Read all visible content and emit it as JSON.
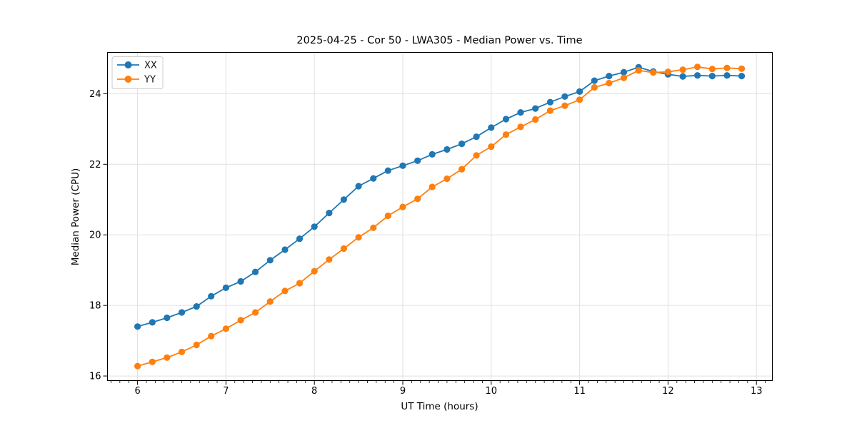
{
  "chart_data": {
    "type": "line",
    "title": "2025-04-25 - Cor 50 - LWA305 - Median Power vs. Time",
    "xlabel": "UT Time (hours)",
    "ylabel": "Median Power (CPU)",
    "xlim": [
      5.66,
      13.18
    ],
    "ylim": [
      15.87,
      25.17
    ],
    "xticks": [
      6,
      7,
      8,
      9,
      10,
      11,
      12,
      13
    ],
    "yticks": [
      16,
      18,
      20,
      22,
      24
    ],
    "x_minor_tick_step": 0.1,
    "grid": true,
    "grid_color": "#e0e0e0",
    "axis_color": "#000000",
    "legend": {
      "position": "upper left",
      "entries": [
        "XX",
        "YY"
      ]
    },
    "x": [
      6.0,
      6.167,
      6.333,
      6.5,
      6.667,
      6.833,
      7.0,
      7.167,
      7.333,
      7.5,
      7.667,
      7.833,
      8.0,
      8.167,
      8.333,
      8.5,
      8.667,
      8.833,
      9.0,
      9.167,
      9.333,
      9.5,
      9.667,
      9.833,
      10.0,
      10.167,
      10.333,
      10.5,
      10.667,
      10.833,
      11.0,
      11.167,
      11.333,
      11.5,
      11.667,
      11.833,
      12.0,
      12.167,
      12.333,
      12.5,
      12.667,
      12.833
    ],
    "series": [
      {
        "name": "XX",
        "color": "#1f77b4",
        "marker": "circle",
        "values": [
          17.4,
          17.52,
          17.65,
          17.8,
          17.97,
          18.26,
          18.5,
          18.68,
          18.95,
          19.28,
          19.58,
          19.89,
          20.23,
          20.62,
          21.0,
          21.38,
          21.6,
          21.82,
          21.96,
          22.1,
          22.28,
          22.42,
          22.58,
          22.78,
          23.04,
          23.28,
          23.47,
          23.58,
          23.76,
          23.92,
          24.06,
          24.37,
          24.5,
          24.61,
          24.75,
          24.63,
          24.55,
          24.49,
          24.52,
          24.5,
          24.52,
          24.5
        ]
      },
      {
        "name": "YY",
        "color": "#ff7f0e",
        "marker": "circle",
        "values": [
          16.28,
          16.4,
          16.52,
          16.68,
          16.88,
          17.13,
          17.34,
          17.58,
          17.8,
          18.11,
          18.41,
          18.63,
          18.97,
          19.3,
          19.61,
          19.93,
          20.2,
          20.54,
          20.79,
          21.02,
          21.36,
          21.59,
          21.86,
          22.25,
          22.5,
          22.84,
          23.06,
          23.27,
          23.52,
          23.66,
          23.83,
          24.18,
          24.3,
          24.45,
          24.66,
          24.6,
          24.62,
          24.68,
          24.76,
          24.7,
          24.73,
          24.71
        ]
      }
    ]
  }
}
